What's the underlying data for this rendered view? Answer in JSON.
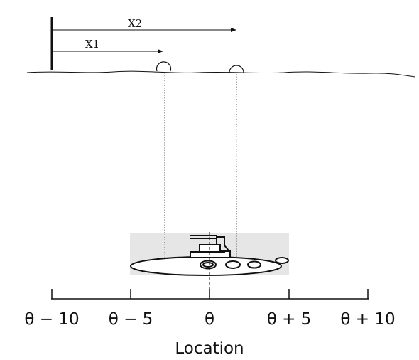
{
  "labels": {
    "x1": "X1",
    "x2": "X2"
  },
  "axis": {
    "title": "Location",
    "ticks": [
      "θ − 10",
      "θ − 5",
      "θ",
      "θ + 5",
      "θ + 10"
    ]
  },
  "colors": {
    "ink": "#111111",
    "highlight": "#e6e6e6"
  }
}
